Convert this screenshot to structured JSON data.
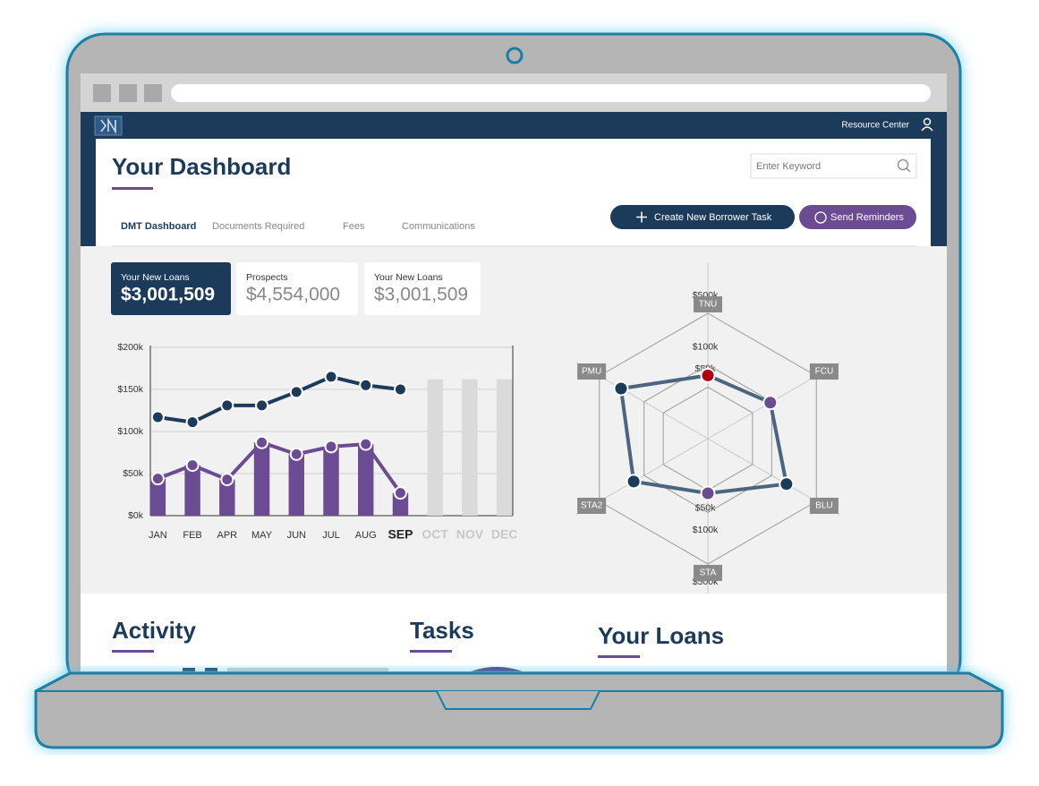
{
  "nav": {
    "link": "Resource Center"
  },
  "header": {
    "title": "Your Dashboard",
    "search_placeholder": "Enter Keyword"
  },
  "tabs": [
    "DMT Dashboard",
    "Documents Required",
    "Fees",
    "Communications"
  ],
  "buttons": [
    "Create New Borrower Task",
    "Send Reminders"
  ],
  "stats": [
    {
      "label": "Your New Loans",
      "value": "$3,001,509"
    },
    {
      "label": "Prospects",
      "value": "$4,554,000"
    },
    {
      "label": "Your New Loans",
      "value": "$3,001,509"
    }
  ],
  "sections": [
    "Activity",
    "Tasks",
    "Your Loans"
  ],
  "chart_data": [
    {
      "type": "combo",
      "categories": [
        "JAN",
        "FEB",
        "APR",
        "MAY",
        "JUN",
        "JUL",
        "AUG",
        "SEP",
        "OCT",
        "NOV",
        "DEC"
      ],
      "series": [
        {
          "kind": "bar",
          "color": "#6b4c93",
          "values": [
            44,
            60,
            43,
            87,
            73,
            82,
            85,
            27,
            null,
            null,
            null
          ]
        },
        {
          "kind": "bar",
          "color": "#dadada",
          "values": [
            null,
            null,
            null,
            null,
            null,
            null,
            null,
            null,
            162,
            162,
            162
          ]
        },
        {
          "kind": "line",
          "color": "#6b4c93",
          "values": [
            44,
            60,
            43,
            87,
            73,
            82,
            85,
            27,
            null,
            null,
            null
          ]
        },
        {
          "kind": "line",
          "color": "#1c3a5a",
          "values": [
            117,
            111,
            131,
            131,
            147,
            165,
            155,
            150,
            null,
            null,
            null
          ]
        }
      ],
      "ylim": [
        0,
        200
      ],
      "yticks": [
        {
          "value": 0,
          "label": "$0k"
        },
        {
          "value": 50,
          "label": "$50k"
        },
        {
          "value": 100,
          "label": "$100k"
        },
        {
          "value": 150,
          "label": "$150k"
        },
        {
          "value": 200,
          "label": "$200k"
        }
      ],
      "grid": true
    },
    {
      "type": "radar",
      "categories": [
        "TNU",
        "FCU",
        "BLU",
        "STA",
        "STA2",
        "PMU"
      ],
      "values": [
        72,
        95,
        170,
        55,
        145,
        229
      ],
      "point_colors": [
        "#b0000e",
        "#6b4c93",
        "#1c3a5a",
        "#6b4c93",
        "#1c3a5a",
        "#1c3a5a"
      ],
      "line_color": "#4a6580",
      "log_scale": true,
      "rlim": [
        10,
        500
      ],
      "rticks": [
        {
          "value": 50,
          "label": "$50k"
        },
        {
          "value": 100,
          "label": "$100k"
        },
        {
          "value": 500,
          "label": "$500k"
        }
      ]
    }
  ]
}
